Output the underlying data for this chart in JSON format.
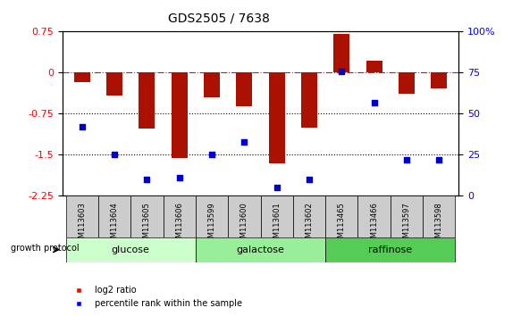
{
  "title": "GDS2505 / 7638",
  "samples": [
    "GSM113603",
    "GSM113604",
    "GSM113605",
    "GSM113606",
    "GSM113599",
    "GSM113600",
    "GSM113601",
    "GSM113602",
    "GSM113465",
    "GSM113466",
    "GSM113597",
    "GSM113598"
  ],
  "log2_ratio": [
    -0.18,
    -0.42,
    -1.02,
    -1.55,
    -0.45,
    -0.62,
    -1.65,
    -1.0,
    0.7,
    0.22,
    -0.38,
    -0.28
  ],
  "percentile_rank": [
    42,
    25,
    10,
    11,
    25,
    33,
    5,
    10,
    76,
    57,
    22,
    22
  ],
  "groups": [
    {
      "label": "glucose",
      "start": 0,
      "end": 4,
      "color": "#ccffcc"
    },
    {
      "label": "galactose",
      "start": 4,
      "end": 8,
      "color": "#99ee99"
    },
    {
      "label": "raffinose",
      "start": 8,
      "end": 12,
      "color": "#55cc55"
    }
  ],
  "bar_color": "#aa1100",
  "scatter_color": "#0000cc",
  "ylim_left": [
    -2.25,
    0.75
  ],
  "ylim_right": [
    0,
    100
  ],
  "yticks_left": [
    0.75,
    0,
    -0.75,
    -1.5,
    -2.25
  ],
  "yticks_right": [
    100,
    75,
    50,
    25,
    0
  ],
  "hline_y": 0,
  "dotted_lines": [
    -0.75,
    -1.5
  ],
  "background_color": "#ffffff",
  "plot_bg_color": "#ffffff",
  "grid_color": "#000000"
}
